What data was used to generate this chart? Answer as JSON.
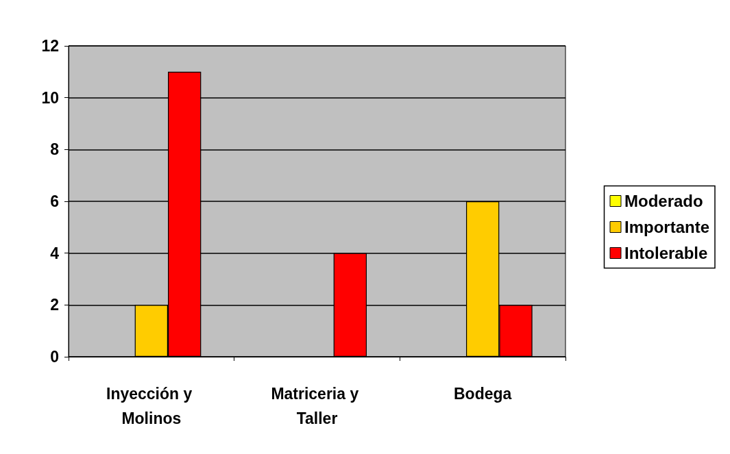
{
  "chart_data": {
    "type": "bar",
    "categories": [
      "Inyección y Molinos",
      "Matriceria y Taller",
      "Bodega"
    ],
    "series": [
      {
        "name": "Moderado",
        "color": "#ffff00",
        "values": [
          0,
          0,
          0
        ]
      },
      {
        "name": "Importante",
        "color": "#ffcc00",
        "values": [
          2,
          0,
          6
        ]
      },
      {
        "name": "Intolerable",
        "color": "#ff0000",
        "values": [
          11,
          4,
          2
        ]
      }
    ],
    "ylim": [
      0,
      12
    ],
    "yticks": [
      0,
      2,
      4,
      6,
      8,
      10,
      12
    ],
    "grid": "y",
    "legend": "right"
  }
}
